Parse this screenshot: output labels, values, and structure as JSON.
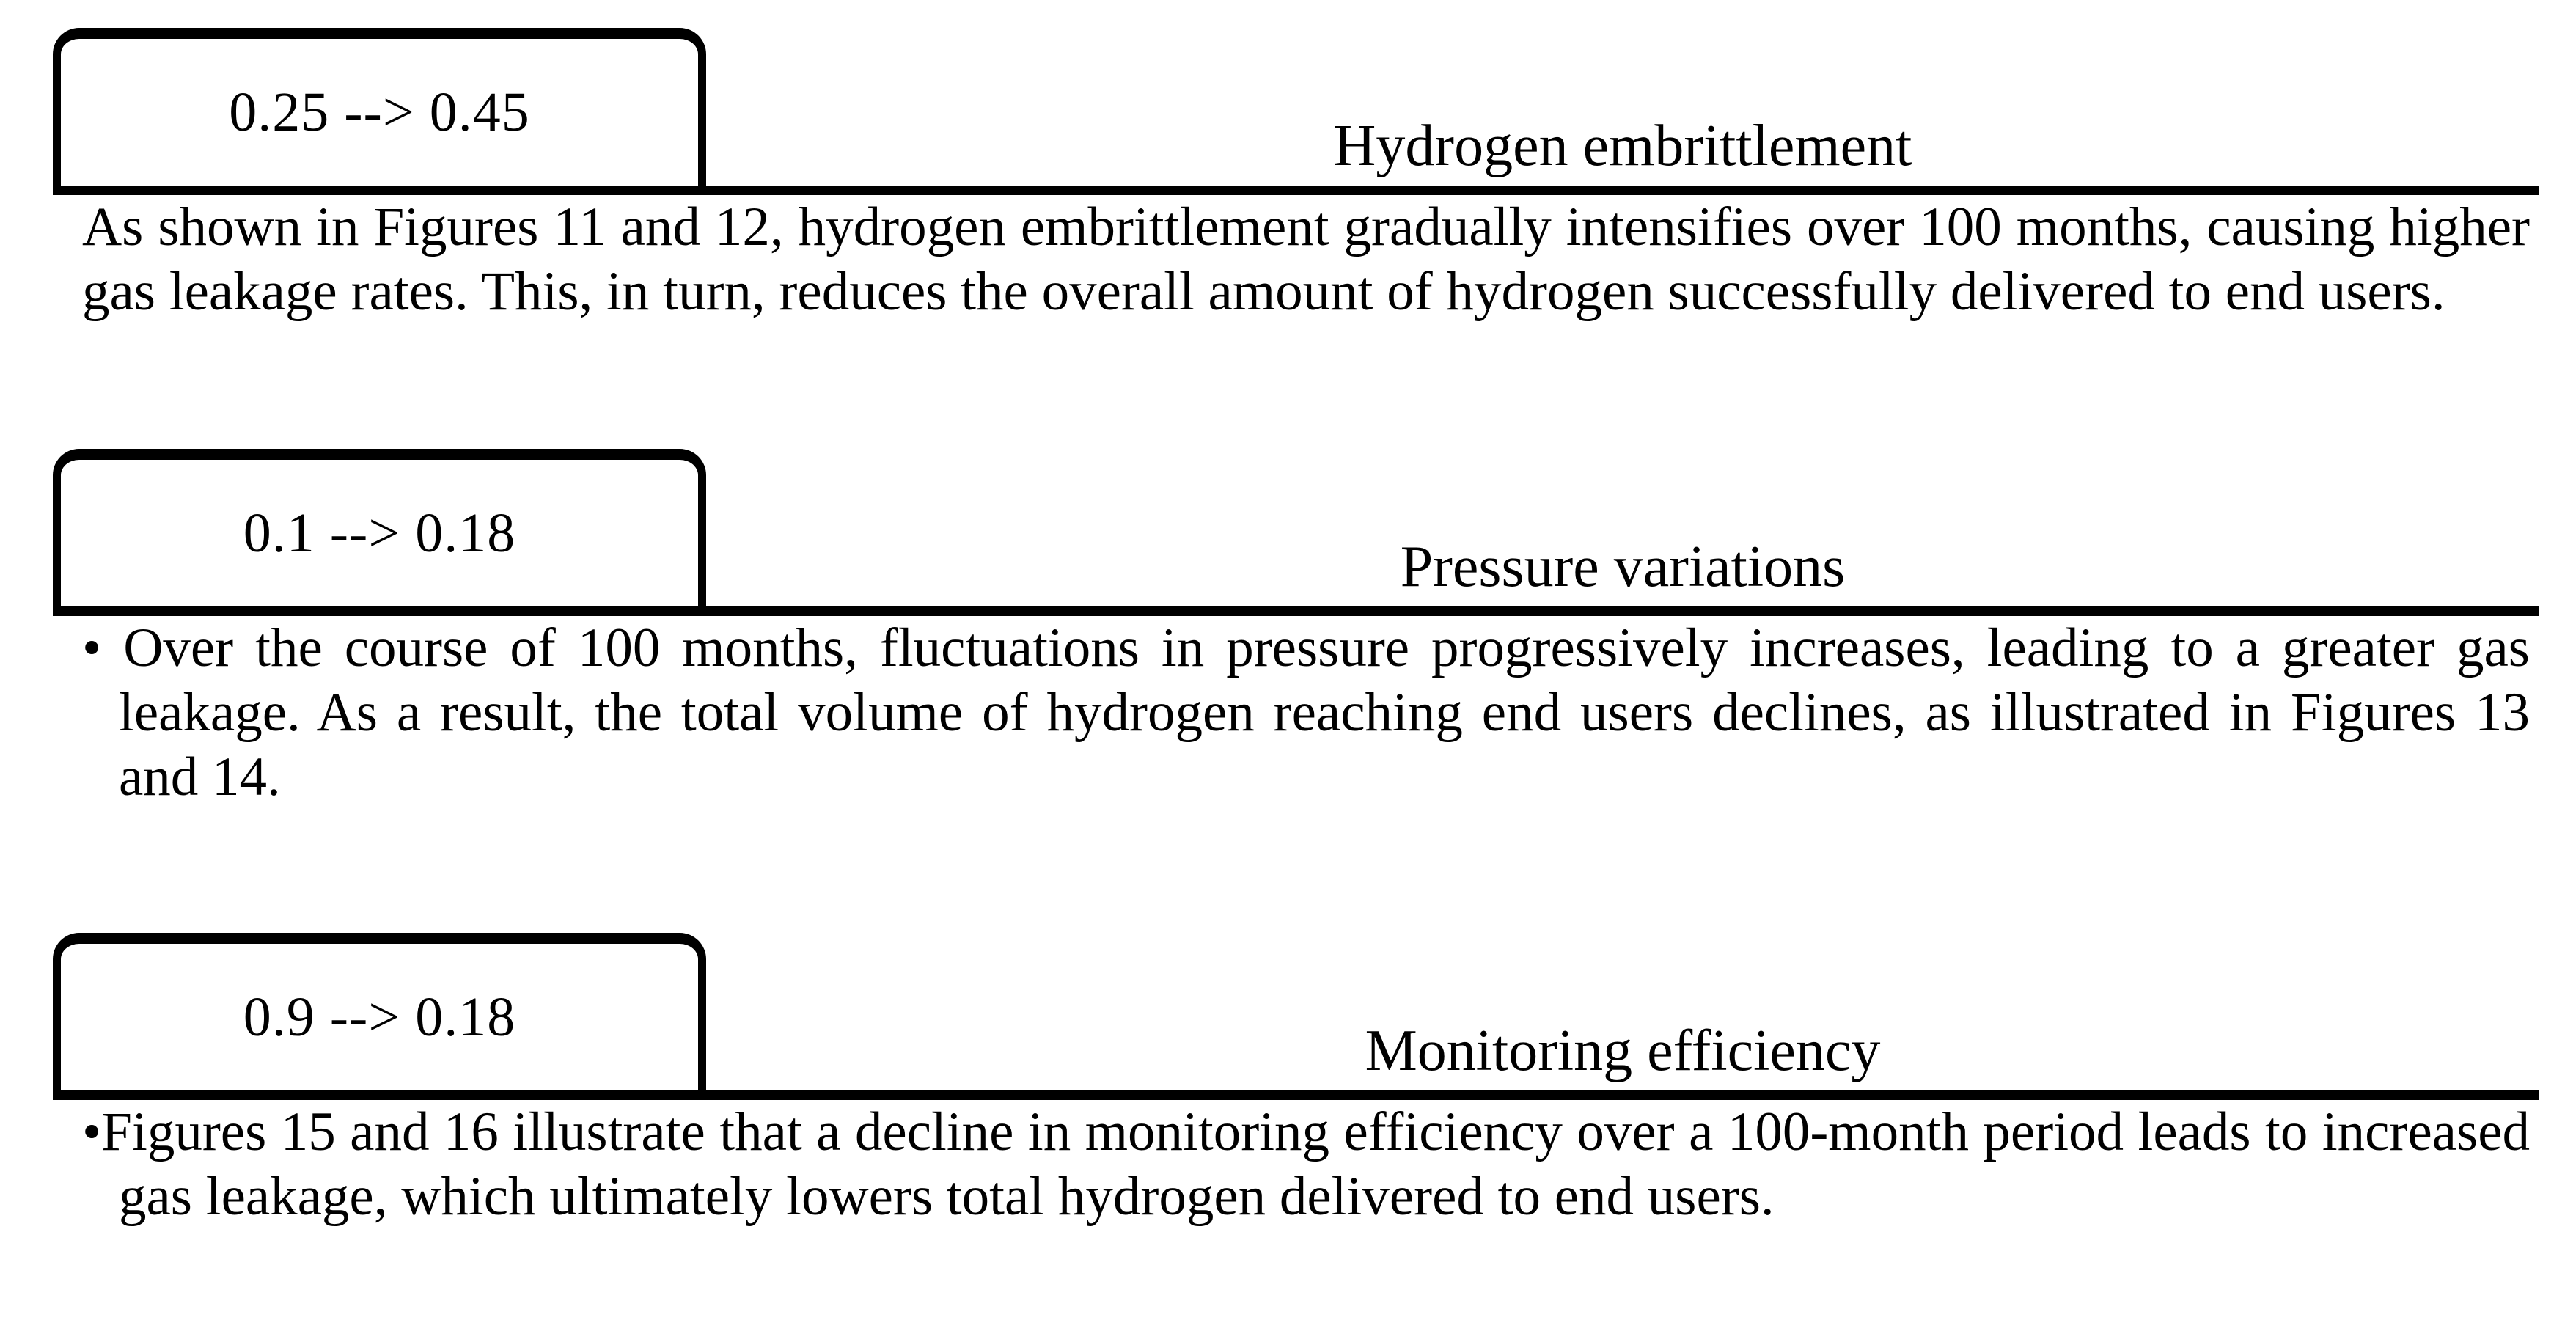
{
  "page": {
    "background_color": "#ffffff",
    "text_color": "#000000",
    "rule_color": "#000000"
  },
  "sections": [
    {
      "tag": "0.25 --> 0.45",
      "heading": "Hydrogen embrittlement",
      "bullet": "",
      "body": "As shown in Figures 11 and 12, hydrogen embrittlement gradually intensifies over 100 months, causing higher gas leakage rates. This, in turn, reduces the overall amount of hydrogen successfully delivered to end users."
    },
    {
      "tag": "0.1 --> 0.18",
      "heading": "Pressure variations",
      "bullet": "• ",
      "body": "Over the course of 100 months, fluctuations in pressure progressively increases, leading to a greater gas leakage. As a result, the total volume of hydrogen reaching end users declines, as illustrated in Figures 13 and 14."
    },
    {
      "tag": "0.9 --> 0.18",
      "heading": "Monitoring efficiency",
      "bullet": "•",
      "body": "Figures 15 and 16 illustrate that a decline in monitoring efficiency over a 100-month period leads to increased gas leakage, which ultimately lowers total hydrogen delivered to end users."
    }
  ]
}
